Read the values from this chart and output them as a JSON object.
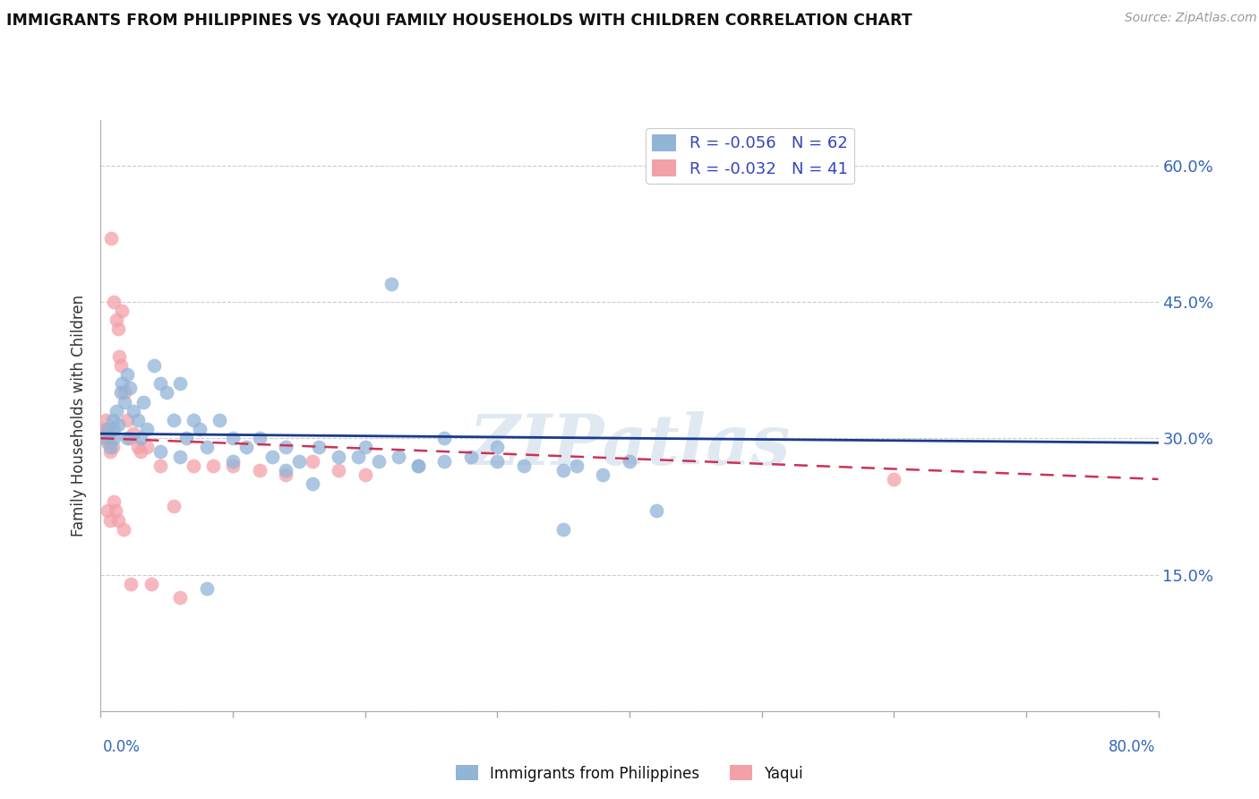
{
  "title": "IMMIGRANTS FROM PHILIPPINES VS YAQUI FAMILY HOUSEHOLDS WITH CHILDREN CORRELATION CHART",
  "source": "Source: ZipAtlas.com",
  "ylabel": "Family Households with Children",
  "xlim": [
    0.0,
    80.0
  ],
  "ylim": [
    0.0,
    65.0
  ],
  "yticks": [
    0.0,
    15.0,
    30.0,
    45.0,
    60.0
  ],
  "ytick_labels": [
    "",
    "15.0%",
    "30.0%",
    "45.0%",
    "60.0%"
  ],
  "blue_color": "#92B4D7",
  "pink_color": "#F4A0A8",
  "line_blue": "#1A3A8C",
  "line_pink": "#CC3355",
  "watermark": "ZIPatlas",
  "blue_line_start_y": 30.5,
  "blue_line_end_y": 29.5,
  "pink_line_start_y": 30.0,
  "pink_line_end_y": 25.5,
  "blue_x": [
    0.3,
    0.5,
    0.7,
    0.9,
    1.0,
    1.2,
    1.3,
    1.5,
    1.6,
    1.8,
    2.0,
    2.2,
    2.5,
    2.8,
    3.0,
    3.5,
    4.0,
    4.5,
    5.0,
    5.5,
    6.0,
    6.5,
    7.0,
    7.5,
    8.0,
    9.0,
    10.0,
    11.0,
    12.0,
    13.0,
    14.0,
    15.0,
    16.5,
    18.0,
    19.5,
    21.0,
    22.5,
    24.0,
    26.0,
    28.0,
    30.0,
    32.0,
    35.0,
    36.0,
    38.0,
    40.0,
    42.0,
    35.0,
    22.0,
    8.0,
    20.0,
    26.0,
    30.0,
    24.0,
    14.0,
    16.0,
    10.0,
    6.0,
    4.5,
    3.2,
    2.0,
    1.0
  ],
  "blue_y": [
    30.0,
    31.0,
    29.0,
    32.0,
    30.0,
    33.0,
    31.5,
    35.0,
    36.0,
    34.0,
    37.0,
    35.5,
    33.0,
    32.0,
    30.0,
    31.0,
    38.0,
    36.0,
    35.0,
    32.0,
    36.0,
    30.0,
    32.0,
    31.0,
    29.0,
    32.0,
    30.0,
    29.0,
    30.0,
    28.0,
    29.0,
    27.5,
    29.0,
    28.0,
    28.0,
    27.5,
    28.0,
    27.0,
    27.5,
    28.0,
    27.5,
    27.0,
    26.5,
    27.0,
    26.0,
    27.5,
    22.0,
    20.0,
    47.0,
    13.5,
    29.0,
    30.0,
    29.0,
    27.0,
    26.5,
    25.0,
    27.5,
    28.0,
    28.5,
    34.0,
    30.0,
    31.0
  ],
  "pink_x": [
    0.2,
    0.3,
    0.4,
    0.5,
    0.6,
    0.7,
    0.8,
    0.9,
    1.0,
    1.1,
    1.2,
    1.3,
    1.4,
    1.5,
    1.6,
    1.8,
    2.0,
    2.2,
    2.5,
    2.8,
    3.0,
    3.5,
    4.5,
    5.5,
    7.0,
    8.5,
    10.0,
    12.0,
    14.0,
    16.0,
    18.0,
    20.0,
    3.8,
    6.0,
    60.0,
    0.5,
    0.7,
    1.0,
    1.3,
    1.7,
    2.3
  ],
  "pink_y": [
    30.5,
    31.0,
    32.0,
    29.5,
    30.0,
    28.5,
    52.0,
    29.0,
    45.0,
    22.0,
    43.0,
    42.0,
    39.0,
    38.0,
    44.0,
    35.0,
    32.0,
    30.0,
    30.5,
    29.0,
    28.5,
    29.0,
    27.0,
    22.5,
    27.0,
    27.0,
    27.0,
    26.5,
    26.0,
    27.5,
    26.5,
    26.0,
    14.0,
    12.5,
    25.5,
    22.0,
    21.0,
    23.0,
    21.0,
    20.0,
    14.0
  ]
}
